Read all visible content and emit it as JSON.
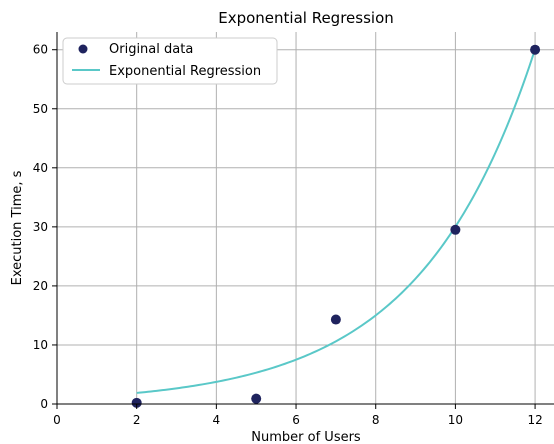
{
  "chart_data": {
    "type": "scatter",
    "title": "Exponential Regression",
    "xlabel": "Number of Users",
    "ylabel": "Execution Time, s",
    "xlim": [
      0,
      12.5
    ],
    "ylim": [
      0,
      63
    ],
    "x_ticks": [
      0,
      2,
      4,
      6,
      8,
      10,
      12
    ],
    "y_ticks": [
      0,
      10,
      20,
      30,
      40,
      50,
      60
    ],
    "grid": true,
    "legend_position": "top-left",
    "series": [
      {
        "name": "Original data",
        "type": "scatter",
        "color": "#1f235e",
        "points": [
          {
            "x": 2,
            "y": 0.2
          },
          {
            "x": 5,
            "y": 0.9
          },
          {
            "x": 7,
            "y": 14.3
          },
          {
            "x": 10,
            "y": 29.5
          },
          {
            "x": 12,
            "y": 60.0
          }
        ]
      },
      {
        "name": "Exponential Regression",
        "type": "line",
        "color": "#5ac8c8",
        "model": {
          "form": "a*exp(b*x)",
          "a": 0.9365,
          "b": 0.3468,
          "x_range": [
            2,
            12
          ]
        }
      }
    ]
  }
}
